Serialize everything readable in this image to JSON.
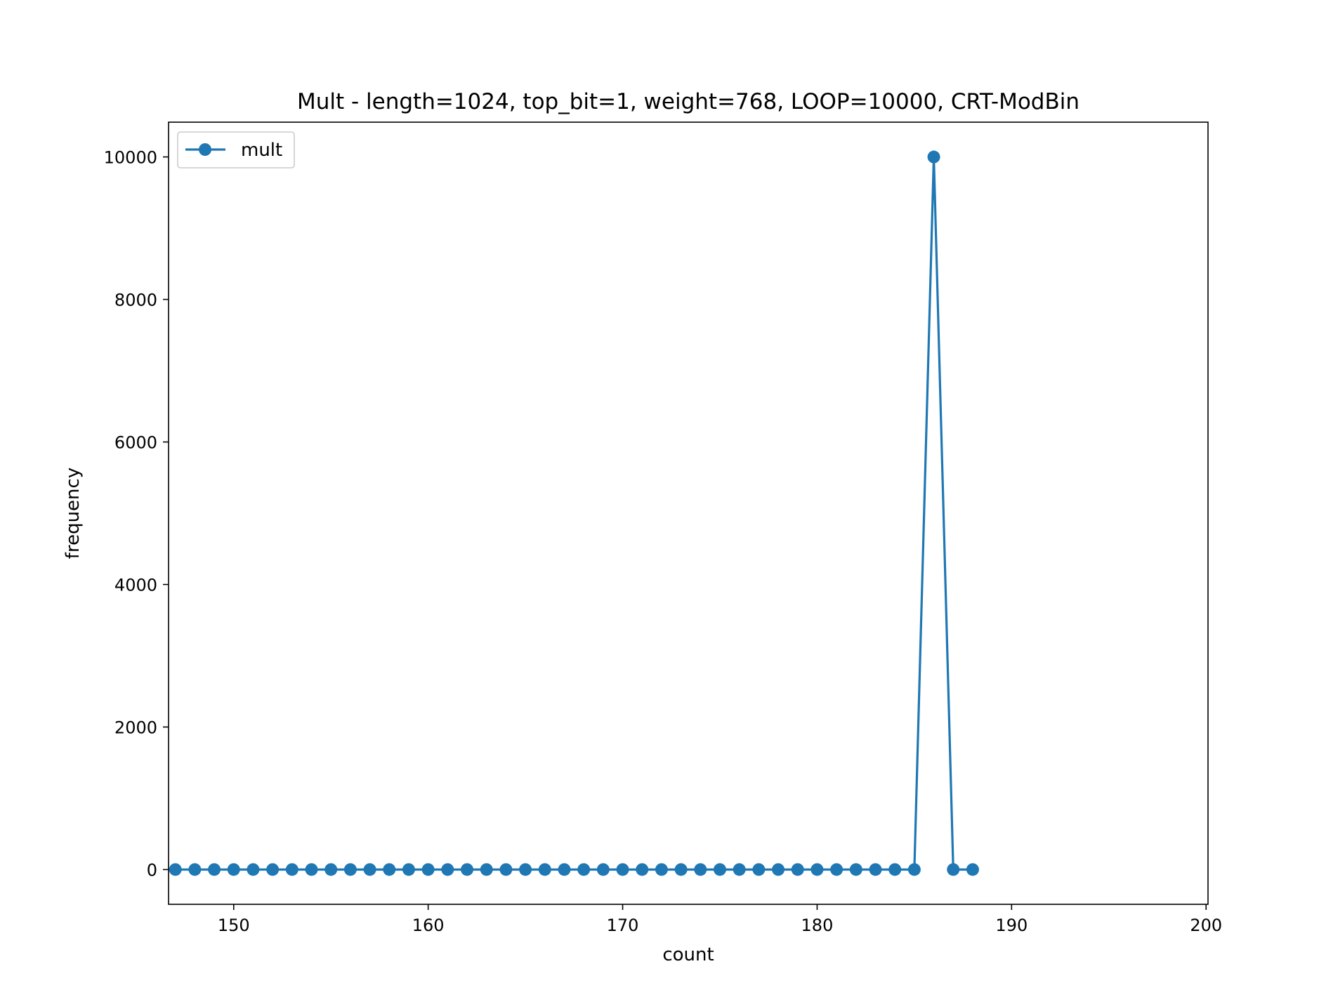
{
  "chart_data": {
    "type": "line",
    "title": "Mult - length=1024, top_bit=1, weight=768, LOOP=10000, CRT-ModBin",
    "xlabel": "count",
    "ylabel": "frequency",
    "xlim": [
      146.65,
      200.1
    ],
    "ylim": [
      -488,
      10488
    ],
    "xticks": [
      150,
      160,
      170,
      180,
      190,
      200
    ],
    "yticks": [
      0,
      2000,
      4000,
      6000,
      8000,
      10000
    ],
    "xtick_labels": [
      "150",
      "160",
      "170",
      "180",
      "190",
      "200"
    ],
    "ytick_labels": [
      "0",
      "2000",
      "4000",
      "6000",
      "8000",
      "10000"
    ],
    "grid": false,
    "legend_position": "upper left",
    "series": [
      {
        "name": "mult",
        "color": "#1f77b4",
        "marker": "circle",
        "x": [
          147,
          148,
          149,
          150,
          151,
          152,
          153,
          154,
          155,
          156,
          157,
          158,
          159,
          160,
          161,
          162,
          163,
          164,
          165,
          166,
          167,
          168,
          169,
          170,
          171,
          172,
          173,
          174,
          175,
          176,
          177,
          178,
          179,
          180,
          181,
          182,
          183,
          184,
          185,
          186,
          187,
          188
        ],
        "y": [
          0,
          0,
          0,
          0,
          0,
          0,
          0,
          0,
          0,
          0,
          0,
          0,
          0,
          0,
          0,
          0,
          0,
          0,
          0,
          0,
          0,
          0,
          0,
          0,
          0,
          0,
          0,
          0,
          0,
          0,
          0,
          0,
          0,
          0,
          0,
          0,
          0,
          0,
          0,
          10000,
          0,
          0
        ]
      }
    ]
  }
}
